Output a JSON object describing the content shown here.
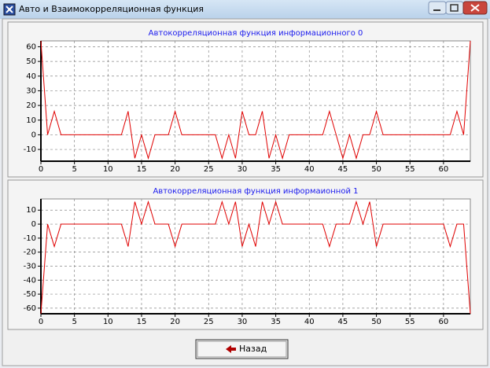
{
  "window": {
    "title": "Авто и Взаимокорреляционная функция"
  },
  "button": {
    "label": "Назад"
  },
  "chart_data": [
    {
      "type": "line",
      "title": "Автокорреляционная функция информационного 0",
      "x": [
        0,
        1,
        2,
        3,
        4,
        5,
        6,
        7,
        8,
        9,
        10,
        11,
        12,
        13,
        14,
        15,
        16,
        17,
        18,
        19,
        20,
        21,
        22,
        23,
        24,
        25,
        26,
        27,
        28,
        29,
        30,
        31,
        32,
        33,
        34,
        35,
        36,
        37,
        38,
        39,
        40,
        41,
        42,
        43,
        44,
        45,
        46,
        47,
        48,
        49,
        50,
        51,
        52,
        53,
        54,
        55,
        56,
        57,
        58,
        59,
        60,
        61,
        62,
        63,
        64
      ],
      "values": [
        64,
        0,
        16,
        0,
        0,
        0,
        0,
        0,
        0,
        0,
        0,
        0,
        0,
        16,
        -16,
        0,
        -16,
        0,
        0,
        0,
        16,
        0,
        0,
        0,
        0,
        0,
        0,
        -16,
        0,
        -16,
        16,
        0,
        0,
        16,
        -16,
        0,
        -16,
        0,
        0,
        0,
        0,
        0,
        0,
        16,
        0,
        -16,
        0,
        -16,
        0,
        0,
        16,
        0,
        0,
        0,
        0,
        0,
        0,
        0,
        0,
        0,
        0,
        0,
        16,
        0,
        64
      ],
      "color": "#e00000",
      "xlim": [
        0,
        64
      ],
      "ylim": [
        -18,
        64
      ],
      "xticks": [
        0,
        5,
        10,
        15,
        20,
        25,
        30,
        35,
        40,
        45,
        50,
        55,
        60
      ],
      "yticks": [
        -10,
        0,
        10,
        20,
        30,
        40,
        50,
        60
      ],
      "grid": true
    },
    {
      "type": "line",
      "title": "Автокорреляционная функция информаионной 1",
      "x": [
        0,
        1,
        2,
        3,
        4,
        5,
        6,
        7,
        8,
        9,
        10,
        11,
        12,
        13,
        14,
        15,
        16,
        17,
        18,
        19,
        20,
        21,
        22,
        23,
        24,
        25,
        26,
        27,
        28,
        29,
        30,
        31,
        32,
        33,
        34,
        35,
        36,
        37,
        38,
        39,
        40,
        41,
        42,
        43,
        44,
        45,
        46,
        47,
        48,
        49,
        50,
        51,
        52,
        53,
        54,
        55,
        56,
        57,
        58,
        59,
        60,
        61,
        62,
        63,
        64
      ],
      "values": [
        -64,
        0,
        -16,
        0,
        0,
        0,
        0,
        0,
        0,
        0,
        0,
        0,
        0,
        -16,
        16,
        0,
        16,
        0,
        0,
        0,
        -16,
        0,
        0,
        0,
        0,
        0,
        0,
        16,
        0,
        16,
        -16,
        0,
        -16,
        16,
        0,
        16,
        0,
        0,
        0,
        0,
        0,
        0,
        0,
        -16,
        0,
        0,
        0,
        16,
        0,
        16,
        -16,
        0,
        0,
        0,
        0,
        0,
        0,
        0,
        0,
        0,
        0,
        -16,
        0,
        0,
        -64
      ],
      "color": "#e00000",
      "xlim": [
        0,
        64
      ],
      "ylim": [
        -64,
        18
      ],
      "xticks": [
        0,
        5,
        10,
        15,
        20,
        25,
        30,
        35,
        40,
        45,
        50,
        55,
        60
      ],
      "yticks": [
        -60,
        -50,
        -40,
        -30,
        -20,
        -10,
        0,
        10
      ],
      "grid": true
    }
  ]
}
